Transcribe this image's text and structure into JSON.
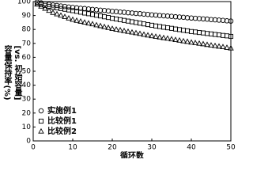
{
  "chart_data": {
    "type": "scatter",
    "xlabel": "循环数",
    "ylabel": "容量保持率(%)",
    "ylabel_note": "[vs. 初始容量]",
    "x": [
      1,
      2,
      3,
      4,
      5,
      6,
      7,
      8,
      9,
      10,
      11,
      12,
      13,
      14,
      15,
      16,
      17,
      18,
      19,
      20,
      21,
      22,
      23,
      24,
      25,
      26,
      27,
      28,
      29,
      30,
      31,
      32,
      33,
      34,
      35,
      36,
      37,
      38,
      39,
      40,
      41,
      42,
      43,
      44,
      45,
      46,
      47,
      48,
      49,
      50
    ],
    "series": [
      {
        "name": "实施例1",
        "marker": "circle",
        "color": "#000000",
        "values": [
          99.6,
          99.1,
          98.6,
          98.0,
          97.5,
          97.2,
          96.8,
          96.5,
          96.1,
          95.8,
          95.5,
          95.2,
          95.0,
          94.7,
          94.4,
          94.1,
          93.8,
          93.6,
          93.3,
          93.0,
          92.8,
          92.5,
          92.3,
          92.0,
          91.8,
          91.5,
          91.3,
          91.0,
          90.8,
          90.5,
          90.3,
          90.0,
          89.8,
          89.6,
          89.4,
          89.1,
          88.9,
          88.7,
          88.4,
          88.2,
          88.0,
          87.8,
          87.6,
          87.4,
          87.1,
          86.9,
          86.7,
          86.5,
          86.2,
          86.0
        ]
      },
      {
        "name": "比较例1",
        "marker": "square",
        "color": "#000000",
        "values": [
          98.5,
          97.9,
          97.3,
          96.6,
          96.0,
          95.5,
          95.0,
          94.5,
          94.0,
          93.5,
          93.0,
          92.4,
          91.8,
          91.3,
          90.8,
          90.2,
          89.7,
          89.1,
          88.6,
          88.0,
          87.5,
          87.0,
          86.5,
          86.0,
          85.5,
          85.0,
          84.5,
          84.0,
          83.5,
          83.0,
          82.5,
          82.1,
          81.6,
          81.2,
          80.8,
          80.3,
          79.9,
          79.4,
          79.0,
          78.5,
          78.2,
          77.8,
          77.5,
          77.1,
          76.8,
          76.4,
          76.1,
          75.7,
          75.4,
          75.0
        ]
      },
      {
        "name": "比较例2",
        "marker": "triangle",
        "color": "#000000",
        "values": [
          98.0,
          96.5,
          95.0,
          93.5,
          92.0,
          91.0,
          90.0,
          89.0,
          88.0,
          87.0,
          86.3,
          85.7,
          85.0,
          84.4,
          83.8,
          83.1,
          82.5,
          81.8,
          81.2,
          80.5,
          80.0,
          79.5,
          78.9,
          78.4,
          77.9,
          77.4,
          76.9,
          76.3,
          75.8,
          75.3,
          74.8,
          74.4,
          73.9,
          73.5,
          73.0,
          72.5,
          72.1,
          71.6,
          71.2,
          70.7,
          70.3,
          69.9,
          69.5,
          69.0,
          68.6,
          68.2,
          67.8,
          67.4,
          66.9,
          66.5
        ]
      }
    ],
    "xlim": [
      0,
      50
    ],
    "xticks": [
      0,
      10,
      20,
      30,
      40,
      50
    ],
    "ylim": [
      0,
      100
    ],
    "yticks": [
      0,
      10,
      20,
      30,
      40,
      50,
      60,
      70,
      80,
      90,
      100
    ],
    "legend": "lower-left"
  }
}
